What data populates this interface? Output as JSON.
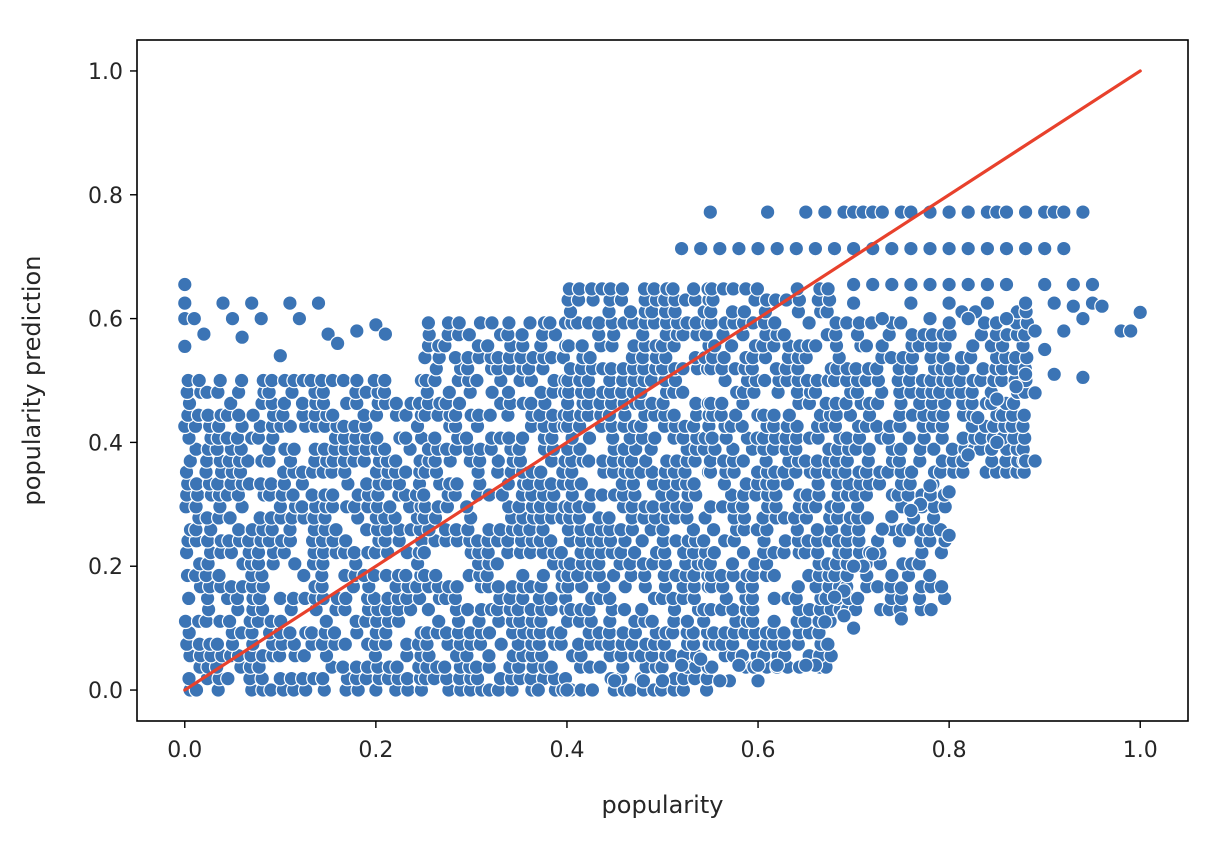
{
  "chart_data": {
    "type": "scatter",
    "xlabel": "popularity",
    "ylabel": "popularity prediction",
    "xlim": [
      -0.05,
      1.05
    ],
    "ylim": [
      -0.05,
      1.05
    ],
    "x_ticks": [
      0.0,
      0.2,
      0.4,
      0.6,
      0.8,
      1.0
    ],
    "y_ticks": [
      0.0,
      0.2,
      0.4,
      0.6,
      0.8,
      1.0
    ],
    "x_tick_labels": [
      "0.0",
      "0.2",
      "0.4",
      "0.6",
      "0.8",
      "1.0"
    ],
    "y_tick_labels": [
      "0.0",
      "0.2",
      "0.4",
      "0.6",
      "0.8",
      "1.0"
    ],
    "grid": false,
    "point_color": "#3b74b5",
    "point_edge_color": "#ffffff",
    "line_color": "#e8412c",
    "prediction_levels": [
      0.0,
      0.0185,
      0.037,
      0.0555,
      0.074,
      0.0925,
      0.111,
      0.13,
      0.148,
      0.167,
      0.185,
      0.204,
      0.222,
      0.241,
      0.259,
      0.278,
      0.296,
      0.315,
      0.333,
      0.352,
      0.37,
      0.389,
      0.407,
      0.426,
      0.444,
      0.463,
      0.481,
      0.5,
      0.519,
      0.537,
      0.556,
      0.574,
      0.593,
      0.611,
      0.63,
      0.648,
      0.667,
      0.685,
      0.704,
      0.722,
      0.741,
      0.759,
      0.778
    ],
    "point_bands": [
      {
        "x_min": 0.0,
        "x_max": 0.25,
        "y_min": 0.0,
        "y_max": 0.5
      },
      {
        "x_min": 0.25,
        "x_max": 0.4,
        "y_min": 0.0,
        "y_max": 0.6
      },
      {
        "x_min": 0.4,
        "x_max": 0.55,
        "y_min": 0.0,
        "y_max": 0.66
      },
      {
        "x_min": 0.55,
        "x_max": 0.68,
        "y_min": 0.03,
        "y_max": 0.66
      },
      {
        "x_min": 0.68,
        "x_max": 0.8,
        "y_min": 0.12,
        "y_max": 0.6
      },
      {
        "x_min": 0.8,
        "x_max": 0.88,
        "y_min": 0.35,
        "y_max": 0.62
      }
    ],
    "points": [
      {
        "x": 0.0,
        "y": 0.655
      },
      {
        "x": 0.0,
        "y": 0.625
      },
      {
        "x": 0.0,
        "y": 0.6
      },
      {
        "x": 0.0,
        "y": 0.555
      },
      {
        "x": 0.01,
        "y": 0.6
      },
      {
        "x": 0.02,
        "y": 0.575
      },
      {
        "x": 0.04,
        "y": 0.625
      },
      {
        "x": 0.05,
        "y": 0.6
      },
      {
        "x": 0.07,
        "y": 0.625
      },
      {
        "x": 0.08,
        "y": 0.6
      },
      {
        "x": 0.11,
        "y": 0.625
      },
      {
        "x": 0.12,
        "y": 0.6
      },
      {
        "x": 0.14,
        "y": 0.625
      },
      {
        "x": 0.15,
        "y": 0.575
      },
      {
        "x": 0.18,
        "y": 0.58
      },
      {
        "x": 0.2,
        "y": 0.59
      },
      {
        "x": 0.21,
        "y": 0.575
      },
      {
        "x": 0.1,
        "y": 0.54
      },
      {
        "x": 0.16,
        "y": 0.56
      },
      {
        "x": 0.06,
        "y": 0.57
      },
      {
        "x": 0.55,
        "y": 0.772
      },
      {
        "x": 0.61,
        "y": 0.772
      },
      {
        "x": 0.65,
        "y": 0.772
      },
      {
        "x": 0.67,
        "y": 0.772
      },
      {
        "x": 0.69,
        "y": 0.772
      },
      {
        "x": 0.7,
        "y": 0.772
      },
      {
        "x": 0.71,
        "y": 0.772
      },
      {
        "x": 0.72,
        "y": 0.772
      },
      {
        "x": 0.73,
        "y": 0.772
      },
      {
        "x": 0.75,
        "y": 0.772
      },
      {
        "x": 0.76,
        "y": 0.772
      },
      {
        "x": 0.78,
        "y": 0.772
      },
      {
        "x": 0.8,
        "y": 0.772
      },
      {
        "x": 0.82,
        "y": 0.772
      },
      {
        "x": 0.84,
        "y": 0.772
      },
      {
        "x": 0.85,
        "y": 0.772
      },
      {
        "x": 0.86,
        "y": 0.772
      },
      {
        "x": 0.88,
        "y": 0.772
      },
      {
        "x": 0.9,
        "y": 0.772
      },
      {
        "x": 0.91,
        "y": 0.772
      },
      {
        "x": 0.92,
        "y": 0.772
      },
      {
        "x": 0.94,
        "y": 0.772
      },
      {
        "x": 0.52,
        "y": 0.713
      },
      {
        "x": 0.54,
        "y": 0.713
      },
      {
        "x": 0.56,
        "y": 0.713
      },
      {
        "x": 0.58,
        "y": 0.713
      },
      {
        "x": 0.6,
        "y": 0.713
      },
      {
        "x": 0.62,
        "y": 0.713
      },
      {
        "x": 0.64,
        "y": 0.713
      },
      {
        "x": 0.66,
        "y": 0.713
      },
      {
        "x": 0.68,
        "y": 0.713
      },
      {
        "x": 0.7,
        "y": 0.713
      },
      {
        "x": 0.72,
        "y": 0.713
      },
      {
        "x": 0.74,
        "y": 0.713
      },
      {
        "x": 0.76,
        "y": 0.713
      },
      {
        "x": 0.78,
        "y": 0.713
      },
      {
        "x": 0.8,
        "y": 0.713
      },
      {
        "x": 0.82,
        "y": 0.713
      },
      {
        "x": 0.84,
        "y": 0.713
      },
      {
        "x": 0.86,
        "y": 0.713
      },
      {
        "x": 0.88,
        "y": 0.713
      },
      {
        "x": 0.9,
        "y": 0.713
      },
      {
        "x": 0.92,
        "y": 0.713
      },
      {
        "x": 0.7,
        "y": 0.655
      },
      {
        "x": 0.72,
        "y": 0.655
      },
      {
        "x": 0.74,
        "y": 0.655
      },
      {
        "x": 0.76,
        "y": 0.655
      },
      {
        "x": 0.78,
        "y": 0.655
      },
      {
        "x": 0.8,
        "y": 0.655
      },
      {
        "x": 0.82,
        "y": 0.655
      },
      {
        "x": 0.84,
        "y": 0.655
      },
      {
        "x": 0.86,
        "y": 0.655
      },
      {
        "x": 0.9,
        "y": 0.655
      },
      {
        "x": 0.93,
        "y": 0.655
      },
      {
        "x": 0.95,
        "y": 0.655
      },
      {
        "x": 0.7,
        "y": 0.625
      },
      {
        "x": 0.73,
        "y": 0.6
      },
      {
        "x": 0.76,
        "y": 0.625
      },
      {
        "x": 0.78,
        "y": 0.6
      },
      {
        "x": 0.8,
        "y": 0.625
      },
      {
        "x": 0.82,
        "y": 0.6
      },
      {
        "x": 0.84,
        "y": 0.625
      },
      {
        "x": 0.86,
        "y": 0.6
      },
      {
        "x": 0.88,
        "y": 0.625
      },
      {
        "x": 0.91,
        "y": 0.625
      },
      {
        "x": 0.93,
        "y": 0.62
      },
      {
        "x": 0.95,
        "y": 0.625
      },
      {
        "x": 0.96,
        "y": 0.62
      },
      {
        "x": 0.98,
        "y": 0.58
      },
      {
        "x": 0.99,
        "y": 0.58
      },
      {
        "x": 1.0,
        "y": 0.61
      },
      {
        "x": 0.94,
        "y": 0.6
      },
      {
        "x": 0.89,
        "y": 0.58
      },
      {
        "x": 0.9,
        "y": 0.55
      },
      {
        "x": 0.92,
        "y": 0.58
      },
      {
        "x": 0.91,
        "y": 0.51
      },
      {
        "x": 0.94,
        "y": 0.505
      },
      {
        "x": 0.88,
        "y": 0.51
      },
      {
        "x": 0.87,
        "y": 0.49
      },
      {
        "x": 0.89,
        "y": 0.48
      },
      {
        "x": 0.85,
        "y": 0.47
      },
      {
        "x": 0.83,
        "y": 0.44
      },
      {
        "x": 0.85,
        "y": 0.4
      },
      {
        "x": 0.88,
        "y": 0.37
      },
      {
        "x": 0.89,
        "y": 0.37
      },
      {
        "x": 0.82,
        "y": 0.38
      },
      {
        "x": 0.8,
        "y": 0.32
      },
      {
        "x": 0.78,
        "y": 0.33
      },
      {
        "x": 0.77,
        "y": 0.3
      },
      {
        "x": 0.76,
        "y": 0.29
      },
      {
        "x": 0.8,
        "y": 0.25
      },
      {
        "x": 0.74,
        "y": 0.28
      },
      {
        "x": 0.73,
        "y": 0.26
      },
      {
        "x": 0.72,
        "y": 0.22
      },
      {
        "x": 0.71,
        "y": 0.2
      },
      {
        "x": 0.7,
        "y": 0.2
      },
      {
        "x": 0.69,
        "y": 0.16
      },
      {
        "x": 0.68,
        "y": 0.15
      },
      {
        "x": 0.69,
        "y": 0.12
      },
      {
        "x": 0.7,
        "y": 0.1
      },
      {
        "x": 0.75,
        "y": 0.165
      },
      {
        "x": 0.75,
        "y": 0.115
      },
      {
        "x": 0.67,
        "y": 0.11
      },
      {
        "x": 0.66,
        "y": 0.04
      },
      {
        "x": 0.65,
        "y": 0.04
      },
      {
        "x": 0.6,
        "y": 0.04
      },
      {
        "x": 0.6,
        "y": 0.015
      },
      {
        "x": 0.57,
        "y": 0.015
      },
      {
        "x": 0.56,
        "y": 0.015
      },
      {
        "x": 0.62,
        "y": 0.04
      },
      {
        "x": 0.58,
        "y": 0.04
      },
      {
        "x": 0.4,
        "y": 0.0
      },
      {
        "x": 0.37,
        "y": 0.0
      },
      {
        "x": 0.45,
        "y": 0.015
      },
      {
        "x": 0.5,
        "y": 0.015
      },
      {
        "x": 0.48,
        "y": 0.015
      },
      {
        "x": 0.52,
        "y": 0.04
      },
      {
        "x": 0.54,
        "y": 0.05
      }
    ],
    "reference_line": {
      "x": [
        0.0,
        1.0
      ],
      "y": [
        0.0,
        1.0
      ]
    }
  }
}
